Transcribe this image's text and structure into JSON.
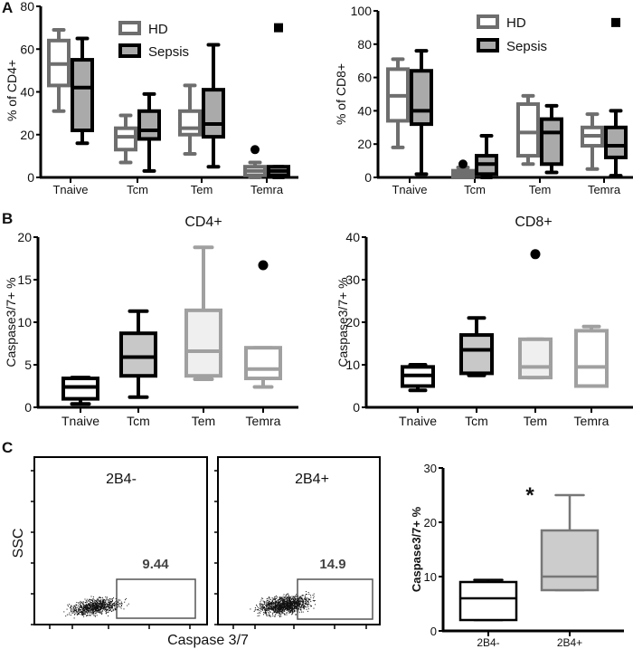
{
  "panels": {
    "a": "A",
    "b": "B",
    "c": "C"
  },
  "legend": {
    "hd": "HD",
    "sepsis": "Sepsis"
  },
  "colors": {
    "hd_stroke": "#6e6e6e",
    "hd_fill": "#ffffff",
    "sepsis_stroke": "#000000",
    "sepsis_fill": "#aaaaaa",
    "light_gray_stroke": "#a0a0a0",
    "light_fill": "#efefef"
  },
  "flow": {
    "y_label": "SSC",
    "x_label": "Caspase 3/7",
    "left": {
      "title": "2B4-",
      "gate_value": "9.44"
    },
    "right": {
      "title": "2B4+",
      "gate_value": "14.9"
    }
  },
  "chart_data": [
    {
      "id": "a_cd4",
      "type": "boxplot",
      "ylabel": "% of CD4+",
      "ylim": [
        0,
        80
      ],
      "yticks": [
        0,
        20,
        40,
        60,
        80
      ],
      "categories": [
        "Tnaive",
        "Tcm",
        "Tem",
        "Temra"
      ],
      "legend": "top-center",
      "series": [
        {
          "name": "HD",
          "boxes": [
            {
              "min": 31,
              "q1": 43,
              "median": 53,
              "q3": 64,
              "max": 69,
              "outliers": []
            },
            {
              "min": 7,
              "q1": 13,
              "median": 19,
              "q3": 23,
              "max": 29,
              "outliers": []
            },
            {
              "min": 11,
              "q1": 20,
              "median": 23,
              "q3": 31,
              "max": 43,
              "outliers": []
            },
            {
              "min": 0,
              "q1": 1,
              "median": 3,
              "q3": 5,
              "max": 7,
              "outliers": [
                13
              ]
            }
          ]
        },
        {
          "name": "Sepsis",
          "boxes": [
            {
              "min": 16,
              "q1": 22,
              "median": 42,
              "q3": 55,
              "max": 65,
              "outliers": []
            },
            {
              "min": 3,
              "q1": 18,
              "median": 22,
              "q3": 31,
              "max": 39,
              "outliers": []
            },
            {
              "min": 5,
              "q1": 19,
              "median": 25,
              "q3": 41,
              "max": 62,
              "outliers": []
            },
            {
              "min": 0,
              "q1": 1,
              "median": 3,
              "q3": 5,
              "max": 5,
              "outliers": [
                70
              ]
            }
          ]
        }
      ]
    },
    {
      "id": "a_cd8",
      "type": "boxplot",
      "ylabel": "% of CD8+",
      "ylim": [
        0,
        100
      ],
      "yticks": [
        0,
        20,
        40,
        60,
        80,
        100
      ],
      "categories": [
        "Tnaive",
        "Tcm",
        "Tem",
        "Temra"
      ],
      "legend": "top-center",
      "series": [
        {
          "name": "HD",
          "boxes": [
            {
              "min": 18,
              "q1": 34,
              "median": 49,
              "q3": 65,
              "max": 71,
              "outliers": []
            },
            {
              "min": 0,
              "q1": 0,
              "median": 2,
              "q3": 4,
              "max": 6,
              "outliers": [
                8
              ]
            },
            {
              "min": 8,
              "q1": 13,
              "median": 27,
              "q3": 44,
              "max": 49,
              "outliers": []
            },
            {
              "min": 5,
              "q1": 19,
              "median": 25,
              "q3": 30,
              "max": 38,
              "outliers": []
            }
          ]
        },
        {
          "name": "Sepsis",
          "boxes": [
            {
              "min": 2,
              "q1": 32,
              "median": 40,
              "q3": 64,
              "max": 76,
              "outliers": []
            },
            {
              "min": 0,
              "q1": 2,
              "median": 8,
              "q3": 13,
              "max": 25,
              "outliers": []
            },
            {
              "min": 3,
              "q1": 8,
              "median": 27,
              "q3": 35,
              "max": 43,
              "outliers": []
            },
            {
              "min": 1,
              "q1": 12,
              "median": 19,
              "q3": 30,
              "max": 40,
              "outliers": [
                93
              ]
            }
          ]
        }
      ]
    },
    {
      "id": "b_cd4",
      "type": "boxplot",
      "title": "CD4+",
      "ylabel": "Caspase3/7+  %",
      "ylim": [
        0,
        20
      ],
      "yticks": [
        0,
        5,
        10,
        15,
        20
      ],
      "categories": [
        "Tnaive",
        "Tcm",
        "Tem",
        "Temra"
      ],
      "boxes": [
        {
          "min": 0.4,
          "q1": 1.0,
          "median": 2.4,
          "q3": 3.4,
          "max": 3.5,
          "outliers": [],
          "stroke": "#000000",
          "fill": "#ffffff"
        },
        {
          "min": 1.2,
          "q1": 3.7,
          "median": 5.9,
          "q3": 8.7,
          "max": 11.3,
          "outliers": [],
          "stroke": "#000000",
          "fill": "#c8c8c8"
        },
        {
          "min": 3.3,
          "q1": 3.7,
          "median": 6.6,
          "q3": 11.4,
          "max": 18.8,
          "outliers": [],
          "stroke": "#a0a0a0",
          "fill": "#efefef"
        },
        {
          "min": 2.4,
          "q1": 3.4,
          "median": 4.5,
          "q3": 7.0,
          "max": 7.0,
          "outliers": [
            16.7
          ],
          "stroke": "#a0a0a0",
          "fill": "#ffffff"
        }
      ]
    },
    {
      "id": "b_cd8",
      "type": "boxplot",
      "title": "CD8+",
      "ylabel": "Caspase3/7+ %",
      "ylim": [
        0,
        40
      ],
      "yticks": [
        0,
        10,
        20,
        30,
        40
      ],
      "categories": [
        "Tnaive",
        "Tcm",
        "Tem",
        "Temra"
      ],
      "boxes": [
        {
          "min": 4,
          "q1": 5,
          "median": 7.5,
          "q3": 9.5,
          "max": 10,
          "outliers": [],
          "stroke": "#000000",
          "fill": "#ffffff"
        },
        {
          "min": 7.5,
          "q1": 8,
          "median": 13.5,
          "q3": 17,
          "max": 21,
          "outliers": [],
          "stroke": "#000000",
          "fill": "#c8c8c8"
        },
        {
          "min": 7,
          "q1": 7,
          "median": 9.5,
          "q3": 16,
          "max": 16,
          "outliers": [
            36
          ],
          "stroke": "#a0a0a0",
          "fill": "#efefef"
        },
        {
          "min": 5,
          "q1": 5,
          "median": 9.5,
          "q3": 18,
          "max": 19,
          "outliers": [],
          "stroke": "#a0a0a0",
          "fill": "#ffffff"
        }
      ]
    },
    {
      "id": "c_2b4",
      "type": "boxplot",
      "ylabel": "Caspase3/7+ %",
      "ylim": [
        0,
        30
      ],
      "yticks": [
        0,
        10,
        20,
        30
      ],
      "categories": [
        "2B4-",
        "2B4+"
      ],
      "annotation": "*",
      "boxes": [
        {
          "min": 2,
          "q1": 2,
          "median": 6,
          "q3": 9,
          "max": 9.4,
          "outliers": [],
          "stroke": "#000000",
          "fill": "#ffffff"
        },
        {
          "min": 7.5,
          "q1": 7.5,
          "median": 10,
          "q3": 18.5,
          "max": 25,
          "outliers": [],
          "stroke": "#777777",
          "fill": "#cccccc"
        }
      ]
    }
  ]
}
